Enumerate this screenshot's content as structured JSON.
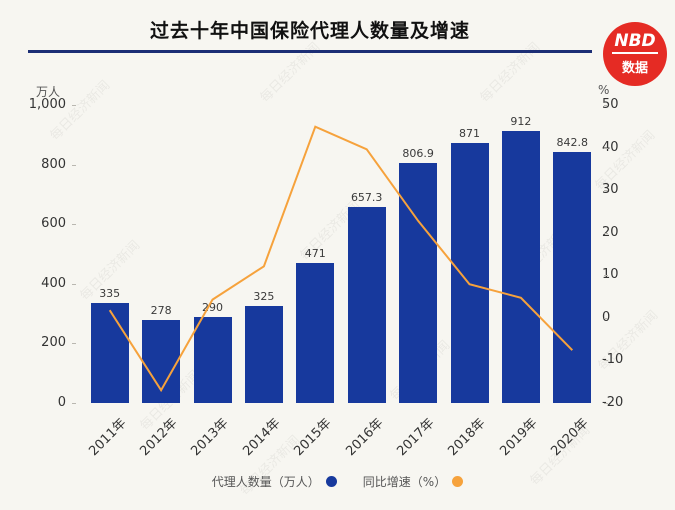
{
  "page": {
    "title": "过去十年中国保险代理人数量及增速",
    "watermark": "每日经济新闻"
  },
  "logo": {
    "line1": "NBD",
    "line2": "数据"
  },
  "colors": {
    "bar": "#17399d",
    "line": "#f6a23c",
    "title_rule": "#1c2e75",
    "logo_bg": "#e52b24",
    "background": "#f7f6f1"
  },
  "chart_data": {
    "type": "bar",
    "title": "过去十年中国保险代理人数量及增速",
    "categories": [
      "2011年",
      "2012年",
      "2013年",
      "2014年",
      "2015年",
      "2016年",
      "2017年",
      "2018年",
      "2019年",
      "2020年"
    ],
    "series": [
      {
        "name": "代理人数量（万人）",
        "type": "bar",
        "axis": "left",
        "values": [
          335,
          278,
          290,
          325,
          471,
          657.3,
          806.9,
          871,
          912,
          842.8
        ]
      },
      {
        "name": "同比增速（%）",
        "type": "line",
        "axis": "right",
        "values": [
          1.8,
          -17,
          4.3,
          12.1,
          44.9,
          39.6,
          22.8,
          7.9,
          4.7,
          -7.6
        ]
      }
    ],
    "left_axis": {
      "label": "万人",
      "min": 0,
      "max": 1000,
      "ticks": [
        0,
        200,
        400,
        600,
        800,
        1000
      ]
    },
    "right_axis": {
      "label": "%",
      "min": -20,
      "max": 50,
      "ticks": [
        -20,
        -10,
        0,
        10,
        20,
        30,
        40,
        50
      ]
    },
    "grid": false,
    "legend_position": "bottom"
  },
  "legend": [
    {
      "label": "代理人数量（万人）",
      "color": "#17399d"
    },
    {
      "label": "同比增速（%）",
      "color": "#f6a23c"
    }
  ]
}
